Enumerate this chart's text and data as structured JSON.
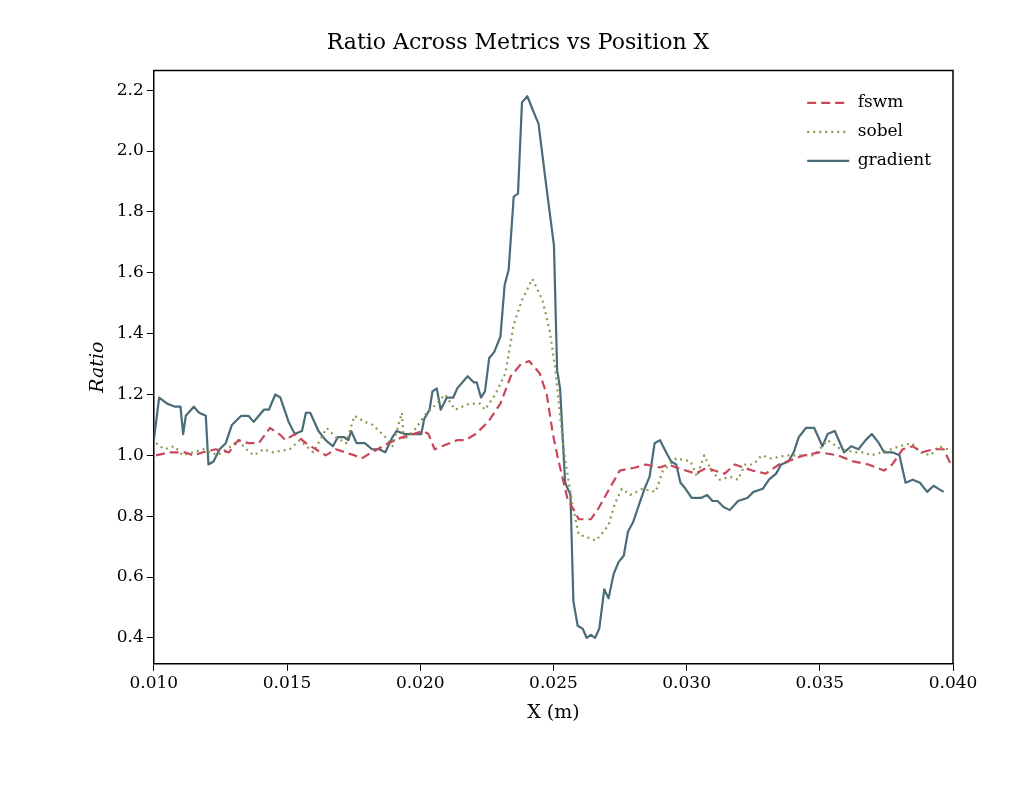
{
  "chart_data": {
    "type": "line",
    "title": "Ratio Across Metrics vs Position X",
    "xlabel": "X (m)",
    "ylabel": "Ratio",
    "xlim": [
      0.01,
      0.04
    ],
    "xticks": [
      {
        "value": 0.01,
        "label": "0.010"
      },
      {
        "value": 0.015,
        "label": "0.015"
      },
      {
        "value": 0.02,
        "label": "0.020"
      },
      {
        "value": 0.025,
        "label": "0.025"
      },
      {
        "value": 0.03,
        "label": "0.030"
      },
      {
        "value": 0.035,
        "label": "0.035"
      },
      {
        "value": 0.04,
        "label": "0.040"
      }
    ],
    "ylim": [
      0.315,
      2.265
    ],
    "yticks": [
      0.4,
      0.6,
      0.8,
      {
        "value": 1.0,
        "label": "1.0"
      },
      1.2,
      1.4,
      1.6,
      1.8,
      {
        "value": 2.0,
        "label": "2.0"
      },
      2.2
    ],
    "legend": "top right",
    "series": [
      {
        "name": "fswm",
        "color": "#c8475a",
        "line_style": "dashed",
        "x": [
          0.01008,
          0.01058,
          0.01116,
          0.01147,
          0.01185,
          0.01232,
          0.01282,
          0.01317,
          0.01355,
          0.01394,
          0.01436,
          0.01471,
          0.01494,
          0.01529,
          0.01571,
          0.01645,
          0.01683,
          0.01753,
          0.0178,
          0.01819,
          0.0188,
          0.01934,
          0.02012,
          0.02031,
          0.02054,
          0.02139,
          0.0217,
          0.02208,
          0.02255,
          0.02301,
          0.0234,
          0.02378,
          0.02409,
          0.02448,
          0.02475,
          0.02498,
          0.02517,
          0.02552,
          0.02595,
          0.02641,
          0.02672,
          0.0271,
          0.02749,
          0.02807,
          0.02846,
          0.029,
          0.02931,
          0.02961,
          0.03035,
          0.03077,
          0.03104,
          0.03143,
          0.03181,
          0.03247,
          0.03297,
          0.03347,
          0.0344,
          0.03498,
          0.03568,
          0.03625,
          0.03683,
          0.03741,
          0.03772,
          0.03811,
          0.03849,
          0.03884,
          0.03927,
          0.03965,
          0.03992
        ],
        "values": [
          1.0,
          1.01,
          1.01,
          1.0,
          1.01,
          1.02,
          1.01,
          1.05,
          1.04,
          1.04,
          1.09,
          1.07,
          1.05,
          1.07,
          1.04,
          1.0,
          1.02,
          1.0,
          0.99,
          1.01,
          1.04,
          1.06,
          1.08,
          1.07,
          1.02,
          1.05,
          1.05,
          1.07,
          1.11,
          1.17,
          1.26,
          1.3,
          1.31,
          1.27,
          1.2,
          1.07,
          0.99,
          0.86,
          0.79,
          0.79,
          0.83,
          0.89,
          0.95,
          0.96,
          0.97,
          0.96,
          0.97,
          0.96,
          0.94,
          0.96,
          0.95,
          0.94,
          0.97,
          0.95,
          0.94,
          0.97,
          1.0,
          1.01,
          1.0,
          0.98,
          0.97,
          0.95,
          0.97,
          1.02,
          1.03,
          1.01,
          1.02,
          1.02,
          0.97
        ]
      },
      {
        "name": "sobel",
        "color": "#8a9b50",
        "line_style": "dotted",
        "x": [
          0.01008,
          0.01039,
          0.01077,
          0.01108,
          0.01185,
          0.01239,
          0.0129,
          0.01317,
          0.01347,
          0.01375,
          0.01413,
          0.01444,
          0.0151,
          0.01548,
          0.01598,
          0.01649,
          0.01683,
          0.01722,
          0.01753,
          0.01792,
          0.01822,
          0.01869,
          0.01896,
          0.01931,
          0.01938,
          0.01985,
          0.02015,
          0.02062,
          0.02093,
          0.02131,
          0.02185,
          0.02224,
          0.02243,
          0.02282,
          0.0232,
          0.02351,
          0.02382,
          0.02421,
          0.02459,
          0.02486,
          0.02506,
          0.02537,
          0.02556,
          0.02571,
          0.02595,
          0.02629,
          0.0266,
          0.02707,
          0.0273,
          0.02757,
          0.02788,
          0.02834,
          0.02884,
          0.02911,
          0.02961,
          0.03015,
          0.03039,
          0.03066,
          0.03093,
          0.03124,
          0.03162,
          0.03193,
          0.0322,
          0.03251,
          0.03282,
          0.03317,
          0.03375,
          0.03432,
          0.03479,
          0.03529,
          0.03579,
          0.03633,
          0.03664,
          0.03691,
          0.03734,
          0.03799,
          0.03846,
          0.03876,
          0.03915,
          0.03946,
          0.03981,
          0.03992
        ],
        "values": [
          1.04,
          1.02,
          1.03,
          1.0,
          1.02,
          1.0,
          1.03,
          1.05,
          1.02,
          1.0,
          1.02,
          1.01,
          1.02,
          1.05,
          1.01,
          1.09,
          1.06,
          1.04,
          1.13,
          1.11,
          1.1,
          1.06,
          1.03,
          1.14,
          1.05,
          1.09,
          1.13,
          1.17,
          1.2,
          1.15,
          1.17,
          1.17,
          1.15,
          1.2,
          1.27,
          1.43,
          1.51,
          1.58,
          1.51,
          1.41,
          1.29,
          1.03,
          0.92,
          0.84,
          0.74,
          0.73,
          0.72,
          0.77,
          0.84,
          0.89,
          0.87,
          0.89,
          0.88,
          0.95,
          0.99,
          0.98,
          0.93,
          1.0,
          0.95,
          0.92,
          0.93,
          0.92,
          0.97,
          0.97,
          1.0,
          0.99,
          1.0,
          1.0,
          1.0,
          1.05,
          1.02,
          1.01,
          1.01,
          1.0,
          1.01,
          1.03,
          1.04,
          1.01,
          1.0,
          1.03,
          1.02,
          1.01
        ]
      },
      {
        "name": "gradient",
        "color": "#4a6b78",
        "line_style": "solid",
        "x": [
          0.01,
          0.0102,
          0.0105,
          0.0108,
          0.011,
          0.0111,
          0.0112,
          0.0115,
          0.0117,
          0.01195,
          0.01205,
          0.01224,
          0.01247,
          0.0127,
          0.01293,
          0.01328,
          0.01355,
          0.01375,
          0.01413,
          0.01432,
          0.01456,
          0.01475,
          0.01506,
          0.01529,
          0.01556,
          0.01571,
          0.01587,
          0.01618,
          0.01645,
          0.01672,
          0.01691,
          0.01714,
          0.0173,
          0.01741,
          0.01761,
          0.01792,
          0.01819,
          0.01846,
          0.01869,
          0.01896,
          0.01911,
          0.01942,
          0.02004,
          0.02015,
          0.02035,
          0.02046,
          0.02062,
          0.02077,
          0.021,
          0.02124,
          0.02139,
          0.02178,
          0.02201,
          0.02212,
          0.02228,
          0.02243,
          0.02259,
          0.02278,
          0.02301,
          0.02317,
          0.02332,
          0.02351,
          0.02367,
          0.02382,
          0.02402,
          0.02425,
          0.02444,
          0.02471,
          0.02502,
          0.02514,
          0.02525,
          0.02544,
          0.02564,
          0.02575,
          0.02591,
          0.0261,
          0.02625,
          0.02641,
          0.02656,
          0.02672,
          0.02691,
          0.02707,
          0.02726,
          0.02745,
          0.02764,
          0.0278,
          0.02799,
          0.02822,
          0.02842,
          0.02861,
          0.0288,
          0.029,
          0.02923,
          0.02942,
          0.02961,
          0.02977,
          0.02996,
          0.03019,
          0.03054,
          0.03077,
          0.03097,
          0.03116,
          0.03139,
          0.03162,
          0.03193,
          0.03228,
          0.03251,
          0.03286,
          0.03309,
          0.03336,
          0.03355,
          0.03382,
          0.03402,
          0.03421,
          0.03448,
          0.03479,
          0.0351,
          0.03529,
          0.03556,
          0.03591,
          0.03618,
          0.03645,
          0.03672,
          0.03695,
          0.03722,
          0.03741,
          0.03772,
          0.03799,
          0.03822,
          0.03849,
          0.03876,
          0.03903,
          0.03927,
          0.03946,
          0.03965
        ],
        "values": [
          1.05,
          1.19,
          1.17,
          1.16,
          1.16,
          1.07,
          1.13,
          1.16,
          1.14,
          1.13,
          0.97,
          0.98,
          1.02,
          1.04,
          1.1,
          1.13,
          1.13,
          1.11,
          1.15,
          1.15,
          1.2,
          1.19,
          1.11,
          1.07,
          1.08,
          1.14,
          1.14,
          1.08,
          1.05,
          1.03,
          1.06,
          1.06,
          1.05,
          1.08,
          1.04,
          1.04,
          1.02,
          1.02,
          1.01,
          1.06,
          1.08,
          1.07,
          1.07,
          1.12,
          1.15,
          1.21,
          1.22,
          1.15,
          1.19,
          1.19,
          1.22,
          1.26,
          1.24,
          1.24,
          1.19,
          1.21,
          1.32,
          1.34,
          1.39,
          1.56,
          1.61,
          1.85,
          1.86,
          2.16,
          2.18,
          2.13,
          2.09,
          1.9,
          1.69,
          1.28,
          1.22,
          0.91,
          0.87,
          0.52,
          0.44,
          0.43,
          0.4,
          0.41,
          0.4,
          0.43,
          0.56,
          0.53,
          0.61,
          0.65,
          0.67,
          0.75,
          0.78,
          0.84,
          0.89,
          0.93,
          1.04,
          1.05,
          1.01,
          0.98,
          0.97,
          0.91,
          0.89,
          0.86,
          0.86,
          0.87,
          0.85,
          0.85,
          0.83,
          0.82,
          0.85,
          0.86,
          0.88,
          0.89,
          0.92,
          0.94,
          0.97,
          0.98,
          1.01,
          1.06,
          1.09,
          1.09,
          1.03,
          1.07,
          1.08,
          1.01,
          1.03,
          1.02,
          1.05,
          1.07,
          1.04,
          1.01,
          1.01,
          1.0,
          0.91,
          0.92,
          0.91,
          0.88,
          0.9,
          0.89,
          0.88
        ]
      }
    ]
  }
}
